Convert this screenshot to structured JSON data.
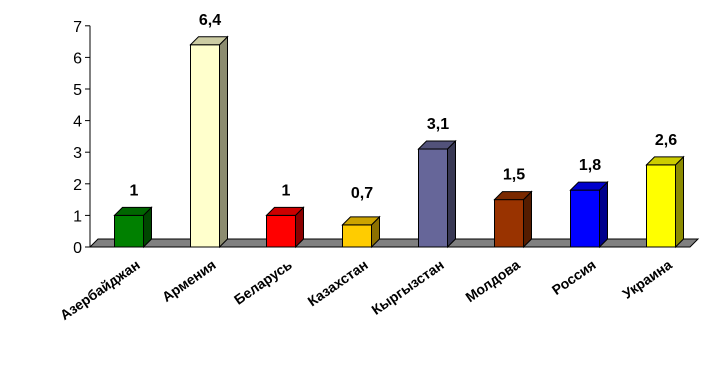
{
  "chart_data": {
    "type": "bar",
    "title": "",
    "xlabel": "",
    "ylabel": "",
    "ylim": [
      0,
      7
    ],
    "yticks": [
      0,
      1,
      2,
      3,
      4,
      5,
      6,
      7
    ],
    "grid": false,
    "legend": "none",
    "three_d": true,
    "categories": [
      "Азербайджан",
      "Армения",
      "Беларусь",
      "Казахстан",
      "Кыргызстан",
      "Молдова",
      "Россия",
      "Украина"
    ],
    "values": [
      1,
      6.4,
      1,
      0.7,
      3.1,
      1.5,
      1.8,
      2.6
    ],
    "value_labels": [
      "1",
      "6,4",
      "1",
      "0,7",
      "3,1",
      "1,5",
      "1,8",
      "2,6"
    ],
    "colors": [
      "#008000",
      "#FFFFCC",
      "#FF0000",
      "#FFCC00",
      "#666699",
      "#993300",
      "#0000FF",
      "#FFFF00"
    ],
    "floor_color": "#808080"
  }
}
